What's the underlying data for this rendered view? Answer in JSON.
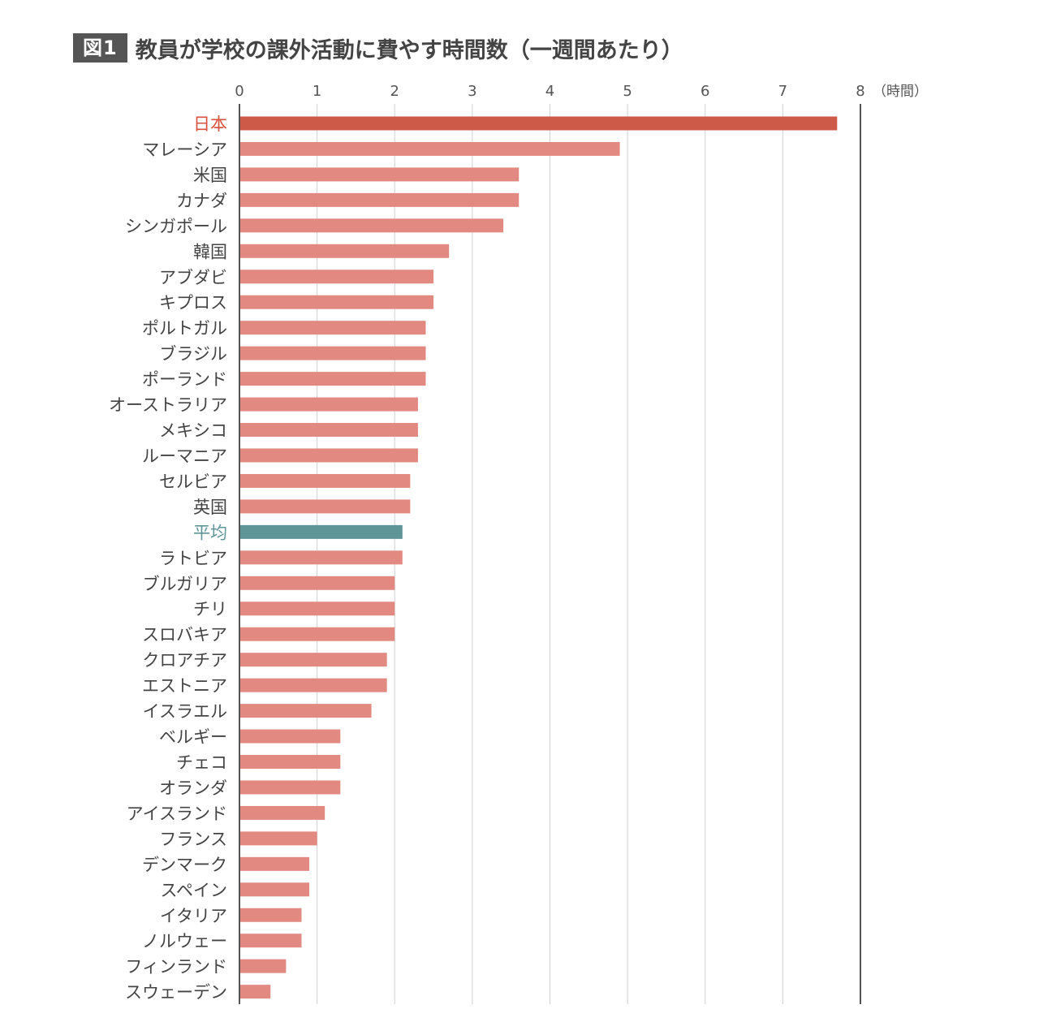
{
  "figure_label": "図1",
  "colors": {
    "highlight": "#cd5a48",
    "bar": "#e28a82",
    "average": "#5f9597",
    "label_default": "#444444",
    "label_highlight": "#d9503f",
    "label_average": "#5f9597",
    "grid": "#d0d0d0",
    "axis": "#555555"
  },
  "chart_data": {
    "type": "bar",
    "orientation": "horizontal",
    "title": "教員が学校の課外活動に費やす時間数（一週間あたり）",
    "unit_label": "（時間）",
    "xlim": [
      0,
      8
    ],
    "ticks": [
      "0",
      "1",
      "2",
      "3",
      "4",
      "5",
      "6",
      "7",
      "8"
    ],
    "grid": true,
    "categories": [
      "日本",
      "マレーシア",
      "米国",
      "カナダ",
      "シンガポール",
      "韓国",
      "アブダビ",
      "キプロス",
      "ポルトガル",
      "ブラジル",
      "ポーランド",
      "オーストラリア",
      "メキシコ",
      "ルーマニア",
      "セルビア",
      "英国",
      "平均",
      "ラトビア",
      "ブルガリア",
      "チリ",
      "スロバキア",
      "クロアチア",
      "エストニア",
      "イスラエル",
      "ベルギー",
      "チェコ",
      "オランダ",
      "アイスランド",
      "フランス",
      "デンマーク",
      "スペイン",
      "イタリア",
      "ノルウェー",
      "フィンランド",
      "スウェーデン"
    ],
    "values": [
      7.7,
      4.9,
      3.6,
      3.6,
      3.4,
      2.7,
      2.5,
      2.5,
      2.4,
      2.4,
      2.4,
      2.3,
      2.3,
      2.3,
      2.2,
      2.2,
      2.1,
      2.1,
      2.0,
      2.0,
      2.0,
      1.9,
      1.9,
      1.7,
      1.3,
      1.3,
      1.3,
      1.1,
      1.0,
      0.9,
      0.9,
      0.8,
      0.8,
      0.6,
      0.4
    ],
    "highlight": "日本",
    "average": "平均"
  }
}
